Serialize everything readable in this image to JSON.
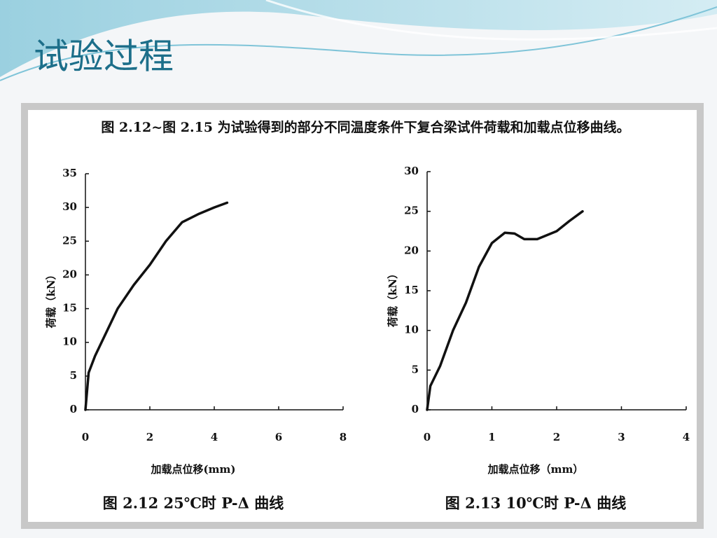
{
  "slide_title": "试验过程",
  "caption": "图 2.12~图 2.15 为试验得到的部分不同温度条件下复合梁试件荷载和加载点位移曲线。",
  "chart_data": [
    {
      "type": "line",
      "title": "图 2.12 25℃时 P-Δ 曲线",
      "xlabel": "加载点位移(mm)",
      "ylabel": "荷载（kN）",
      "x": [
        0,
        0.1,
        0.3,
        0.6,
        1.0,
        1.5,
        2.0,
        2.5,
        3.0,
        3.5,
        4.0,
        4.4
      ],
      "series": [
        {
          "color": "#111111",
          "values": [
            0,
            5.5,
            8,
            11,
            15,
            18.5,
            21.5,
            25,
            27.8,
            29,
            30,
            30.7
          ]
        }
      ],
      "xlim": [
        0,
        8
      ],
      "xticks": [
        0,
        2,
        4,
        6,
        8
      ],
      "ylim": [
        0,
        35
      ],
      "yticks": [
        0,
        5,
        10,
        15,
        20,
        25,
        30,
        35
      ]
    },
    {
      "type": "line",
      "title": "图 2.13 10℃时 P-Δ 曲线",
      "xlabel": "加载点位移（mm）",
      "ylabel": "荷载（kN）",
      "x": [
        0,
        0.05,
        0.2,
        0.4,
        0.6,
        0.8,
        1.0,
        1.2,
        1.35,
        1.5,
        1.7,
        2.0,
        2.2,
        2.4
      ],
      "series": [
        {
          "color": "#111111",
          "values": [
            0,
            3,
            5.5,
            10,
            13.5,
            18,
            21,
            22.3,
            22.2,
            21.5,
            21.5,
            22.5,
            23.8,
            25
          ]
        }
      ],
      "xlim": [
        0,
        4
      ],
      "xticks": [
        0,
        1,
        2,
        3,
        4
      ],
      "ylim": [
        0,
        30
      ],
      "yticks": [
        0,
        5,
        10,
        15,
        20,
        25,
        30
      ]
    }
  ]
}
